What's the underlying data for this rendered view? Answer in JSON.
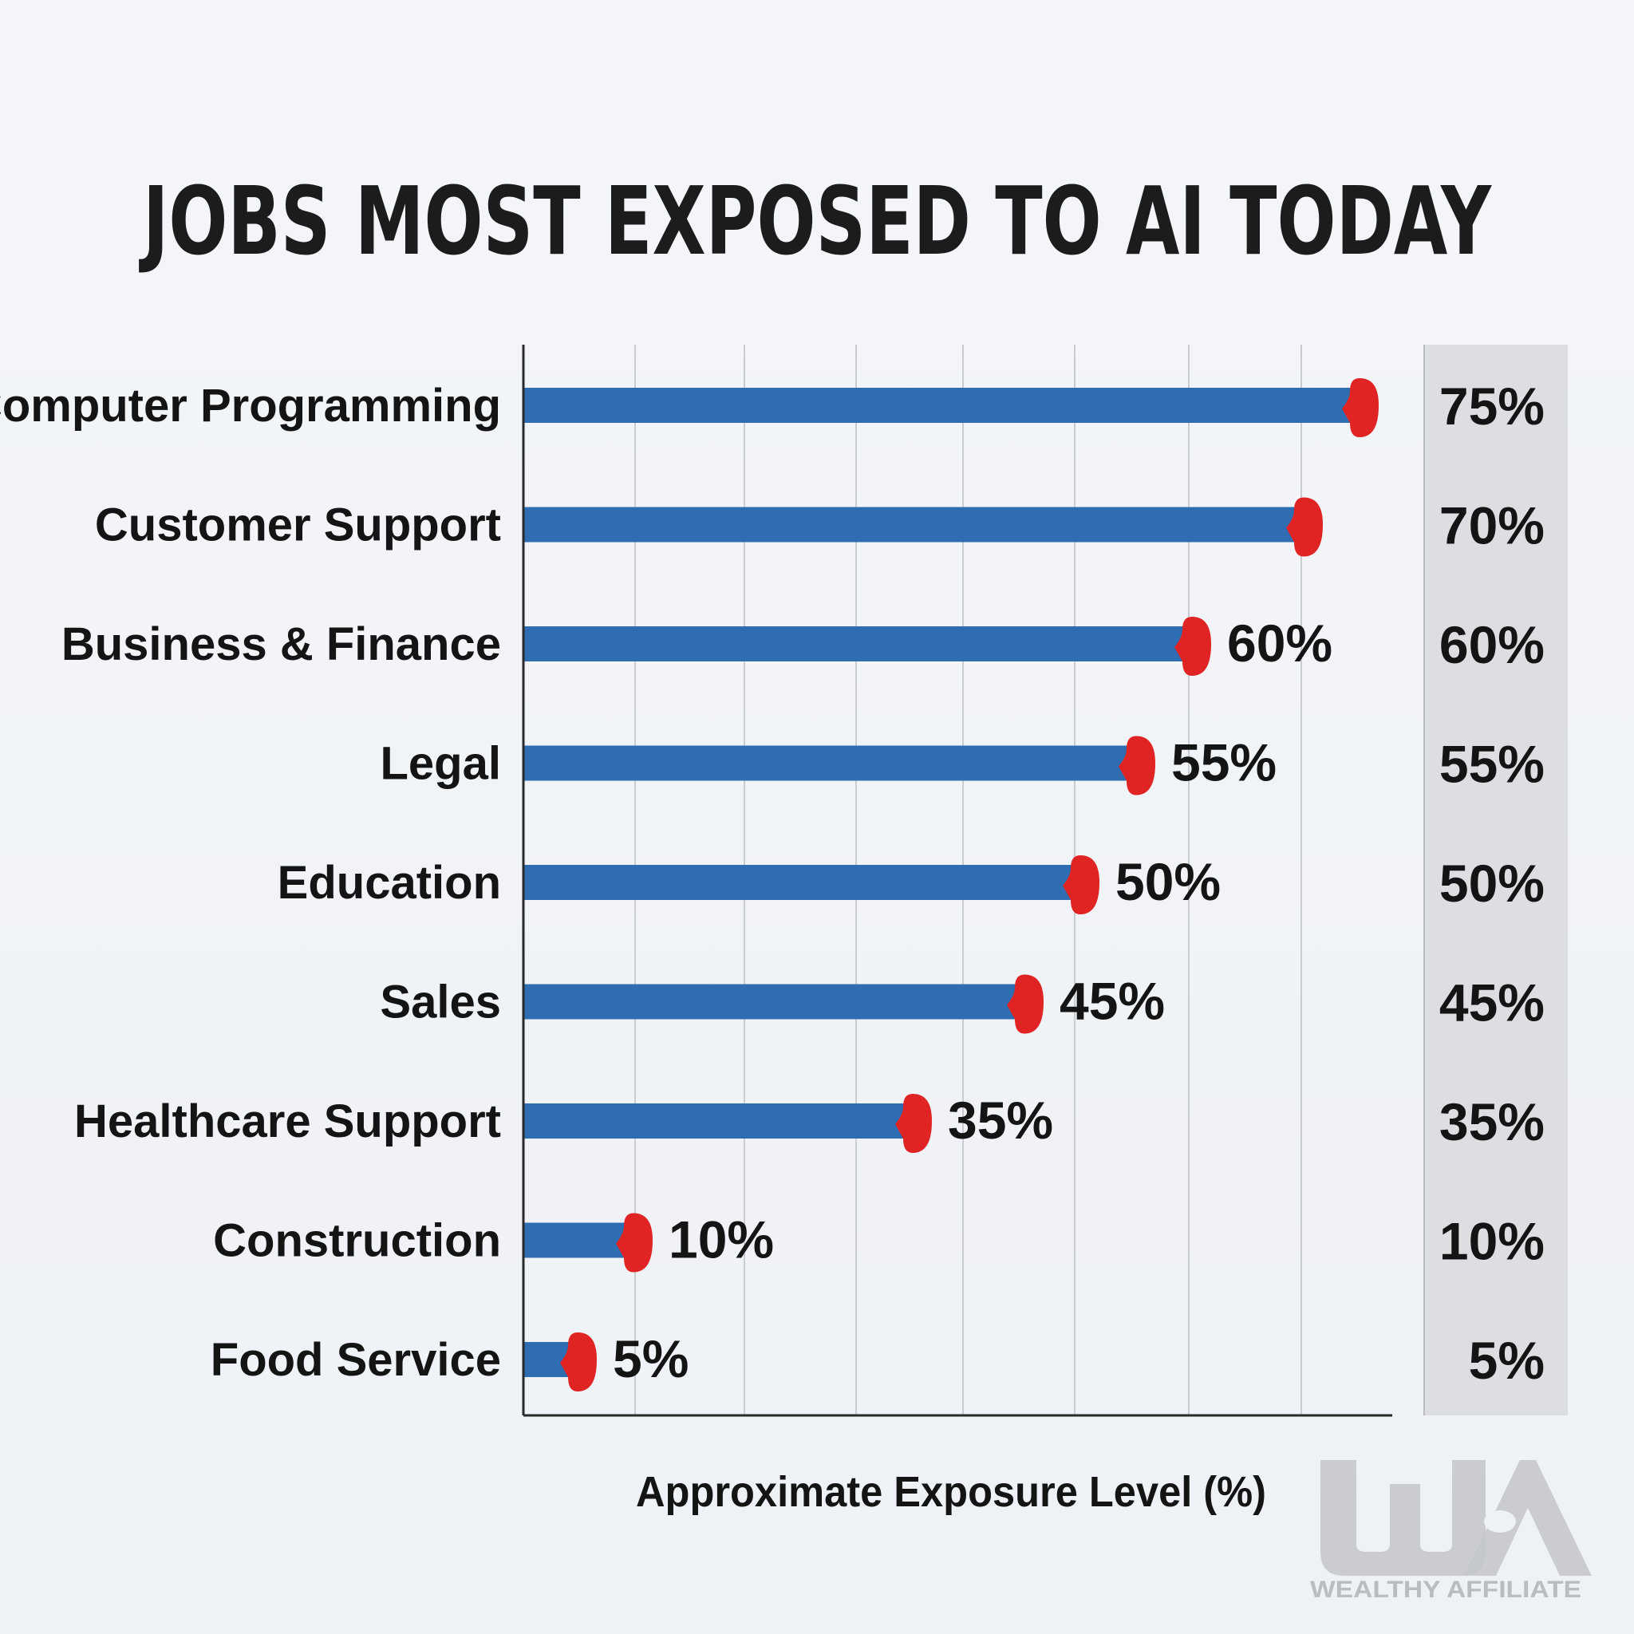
{
  "chart_data": {
    "type": "bar",
    "orientation": "horizontal",
    "title": "JOBS MOST EXPOSED TO AI TODAY",
    "xlabel": "Approximate Exposure Level (%)",
    "ylabel": "",
    "xlim": [
      0,
      77
    ],
    "grid": true,
    "categories": [
      "Computer Programming",
      "Customer Support",
      "Business & Finance",
      "Legal",
      "Education",
      "Sales",
      "Healthcare Support",
      "Construction",
      "Food Service"
    ],
    "values": [
      75,
      70,
      60,
      55,
      50,
      45,
      35,
      10,
      5
    ],
    "bar_labels": [
      "",
      "",
      "60%",
      "55%",
      "50%",
      "45%",
      "35%",
      "10%",
      "5%"
    ],
    "side_panel_labels": [
      "75%",
      "70%",
      "60%",
      "55%",
      "50%",
      "45%",
      "35%",
      "10%",
      "5%"
    ],
    "colors": {
      "bar": "#2f6db3",
      "marker": "#e02424",
      "grid": "#c9ccd1",
      "axis": "#2a2a2a",
      "panel": "#dcdee1"
    }
  },
  "watermark": {
    "monogram": "WA",
    "text": "WEALTHY AFFILIATE"
  }
}
